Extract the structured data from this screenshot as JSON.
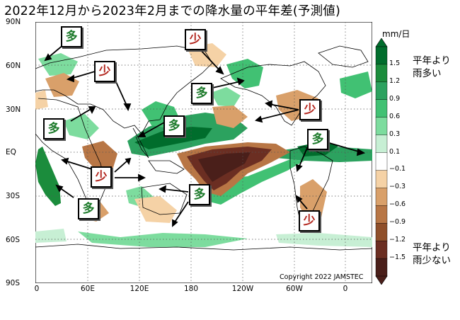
{
  "title": "2022年12月から2023年2月までの降水量の平年差(予測値)",
  "lat_labels": [
    "90N",
    "60N",
    "30N",
    "EQ",
    "30S",
    "60S",
    "90S"
  ],
  "lon_labels": [
    "0",
    "60E",
    "120E",
    "180",
    "120W",
    "60W",
    "0"
  ],
  "colorbar": {
    "unit": "mm/日",
    "ticks": [
      "1.5",
      "1.2",
      "0.9",
      "0.6",
      "0.3",
      "0.1",
      "−0.1",
      "−0.3",
      "−0.6",
      "−0.9",
      "−1.2",
      "−1.5"
    ],
    "colors": [
      "#006d2c",
      "#1b8c3c",
      "#2ca25f",
      "#41c173",
      "#7ddc9e",
      "#c7efd4",
      "#ffffff",
      "#f5d2a6",
      "#d9a06a",
      "#b87645",
      "#8f4f2a",
      "#6b2e22",
      "#4a1f1a"
    ],
    "more_note": [
      "平年より",
      "雨多い"
    ],
    "less_note": [
      "平年より",
      "雨少ない"
    ]
  },
  "label_more": "多",
  "label_less": "少",
  "copyright": "Copyright 2022 JAMSTEC"
}
